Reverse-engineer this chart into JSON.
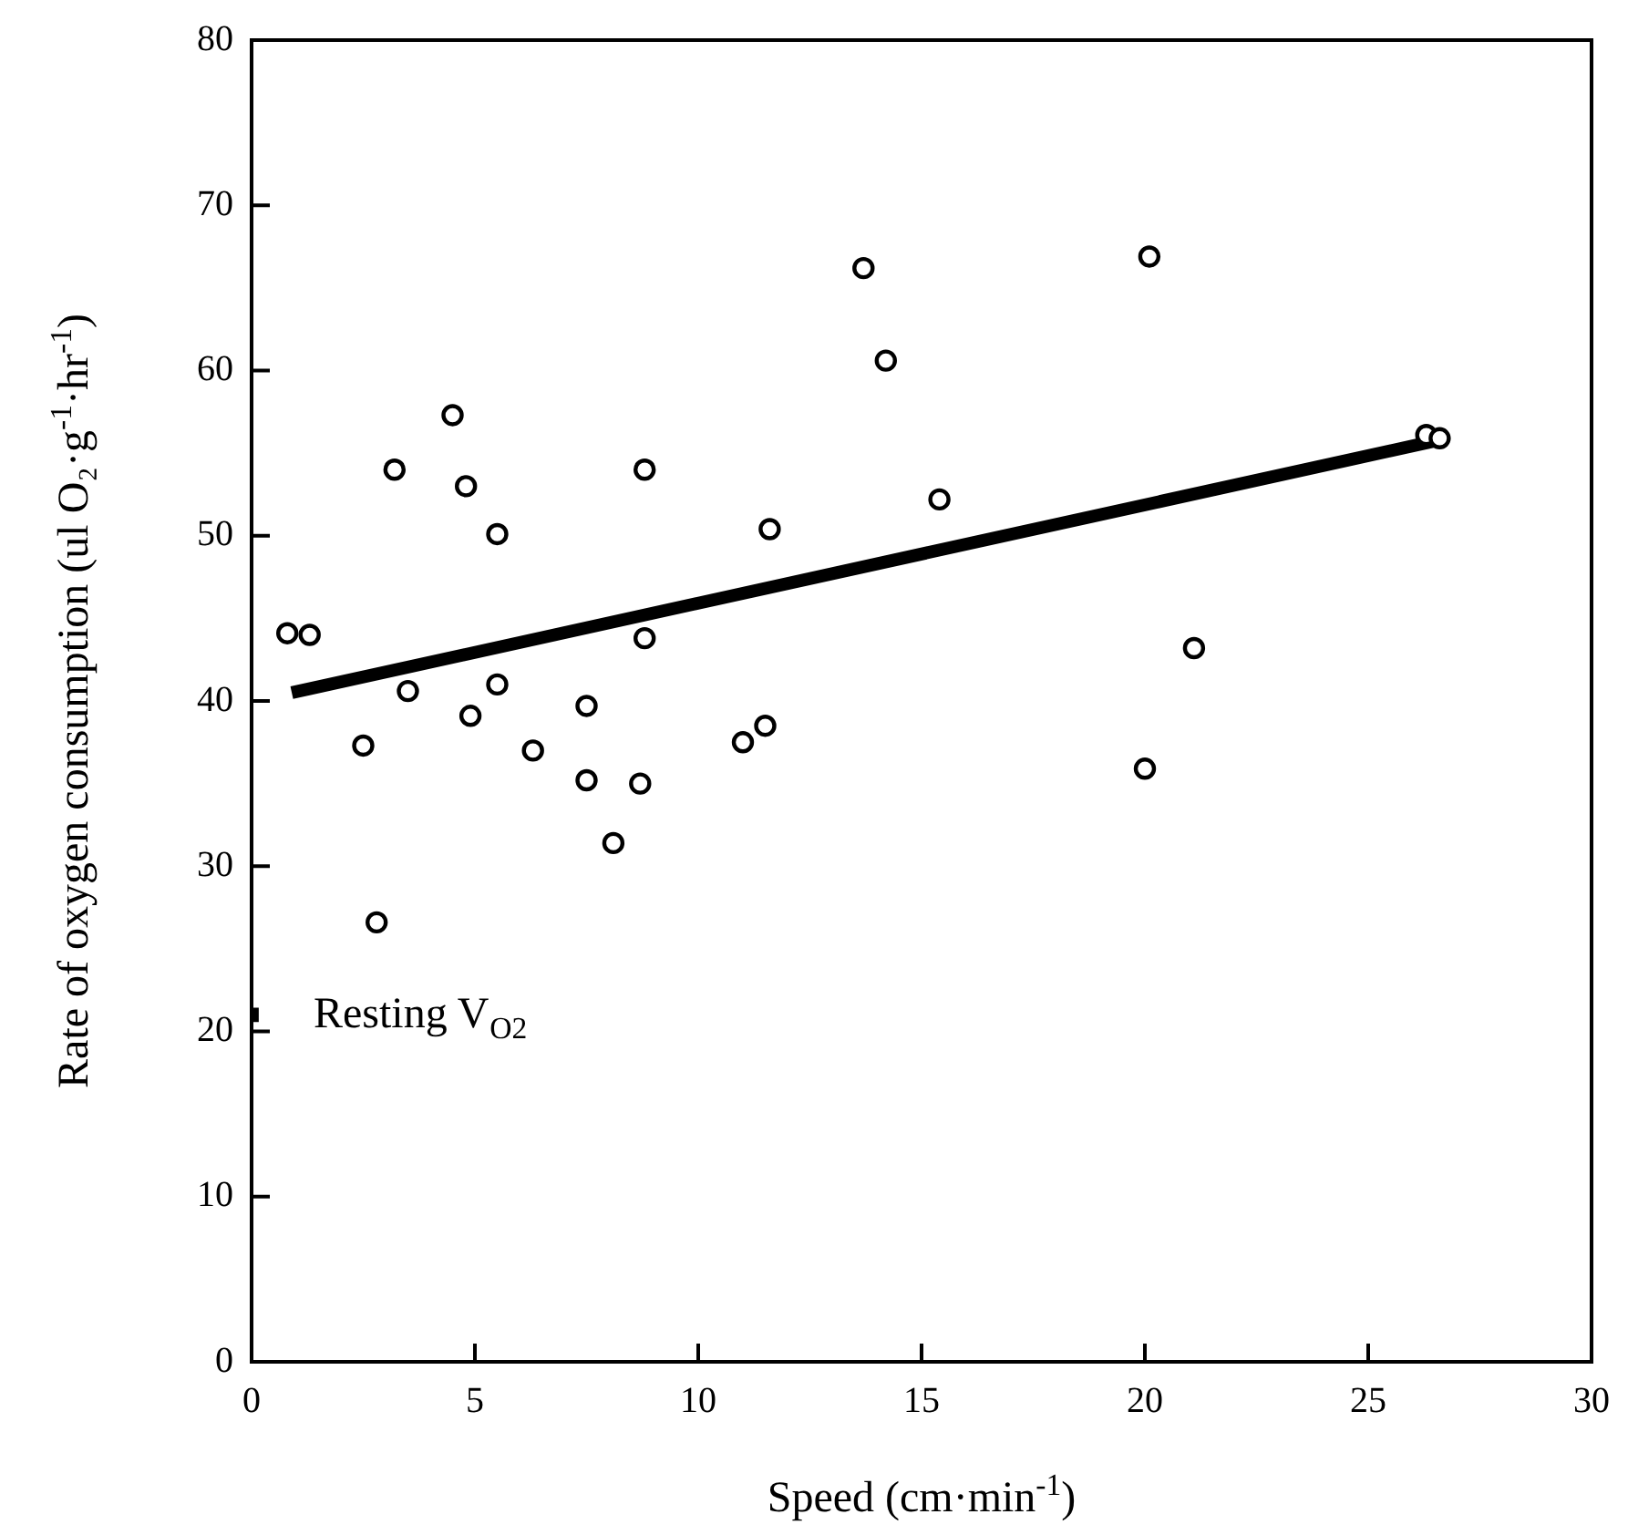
{
  "chart_data": {
    "type": "scatter",
    "xlabel": "Speed (cm·min$^{-1}$)",
    "ylabel": "Rate of oxygen consumption (ul O₂·g$^{-1}$·hr$^{-1}$)",
    "xlim": [
      0,
      30
    ],
    "ylim": [
      0,
      80
    ],
    "xticks": [
      0,
      5,
      10,
      15,
      20,
      25,
      30
    ],
    "yticks": [
      0,
      10,
      20,
      30,
      40,
      50,
      60,
      70,
      80
    ],
    "annotations": [
      {
        "text": "Resting V$_{O2}$",
        "x": 0,
        "y": 21
      }
    ],
    "series": [
      {
        "type": "scatter",
        "marker": "circle",
        "color": "#000000",
        "x": [
          0.8,
          1.3,
          2.5,
          2.8,
          3.2,
          3.5,
          4.5,
          4.8,
          4.9,
          5.5,
          5.5,
          6.3,
          7.5,
          7.5,
          8.1,
          8.7,
          8.8,
          8.8,
          11,
          11.5,
          11.6,
          13.7,
          14.2,
          15.4,
          20,
          20.1,
          21.1,
          26.3,
          26.6
        ],
        "values": [
          44.1,
          44,
          37.3,
          26.6,
          54,
          40.6,
          57.3,
          53,
          39.1,
          50.1,
          41,
          37,
          39.7,
          35.2,
          31.4,
          35,
          43.8,
          54,
          37.5,
          38.5,
          50.4,
          66.2,
          60.6,
          52.2,
          35.9,
          66.9,
          43.2,
          56.1,
          55.9
        ]
      },
      {
        "type": "scatter",
        "marker": "square",
        "color": "#000000",
        "x": [
          0
        ],
        "values": [
          21
        ]
      },
      {
        "type": "line",
        "marker": "none",
        "color": "#000000",
        "x": [
          0.9,
          26.6
        ],
        "values": [
          40.5,
          55.8
        ]
      }
    ]
  }
}
